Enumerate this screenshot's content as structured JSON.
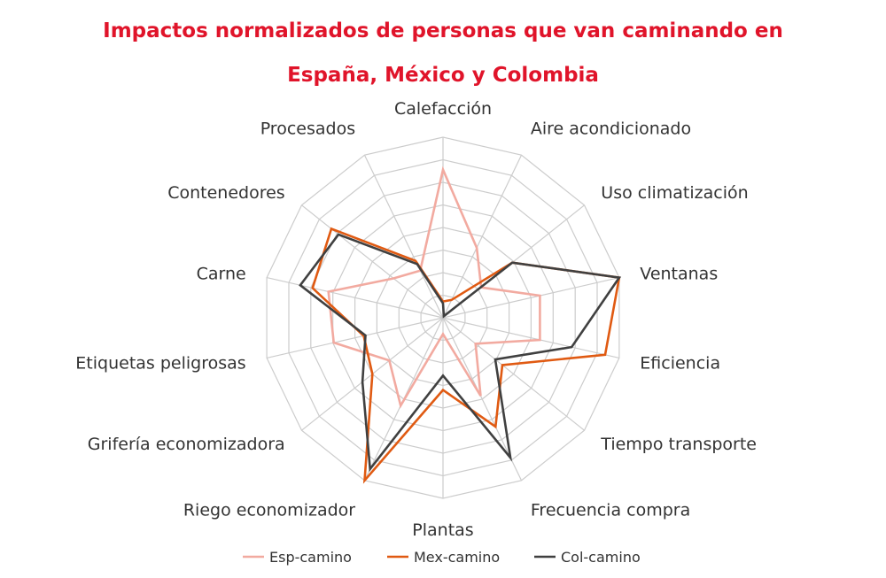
{
  "chart_data": {
    "type": "radar",
    "title_lines": [
      "Impactos normalizados de personas que van caminando en",
      "España, México y Colombia"
    ],
    "categories": [
      "Calefacción",
      "Aire acondicionado",
      "Uso climatización",
      "Ventanas",
      "Eficiencia",
      "Tiempo transporte",
      "Frecuencia compra",
      "Plantas",
      "Riego economizador",
      "Grifería economizadora",
      "Etiquetas peligrosas",
      "Carne",
      "Contenedores",
      "Procesados"
    ],
    "rlim": [
      0,
      1
    ],
    "rings": 8,
    "grid": true,
    "legend_position": "bottom",
    "series": [
      {
        "name": "Esp-camino",
        "color": "#f2aaa0",
        "values": [
          0.82,
          0.43,
          0.27,
          0.55,
          0.55,
          0.23,
          0.48,
          0.09,
          0.54,
          0.38,
          0.62,
          0.65,
          0.35,
          0.29
        ]
      },
      {
        "name": "Mex-camino",
        "color": "#e05a12",
        "values": [
          0.09,
          0.11,
          0.49,
          1.0,
          0.92,
          0.42,
          0.67,
          0.4,
          1.0,
          0.5,
          0.45,
          0.74,
          0.79,
          0.35
        ]
      },
      {
        "name": "Col-camino",
        "color": "#404040",
        "values": [
          0.08,
          0.01,
          0.49,
          1.0,
          0.73,
          0.37,
          0.86,
          0.32,
          0.93,
          0.57,
          0.44,
          0.81,
          0.74,
          0.33
        ]
      }
    ]
  }
}
